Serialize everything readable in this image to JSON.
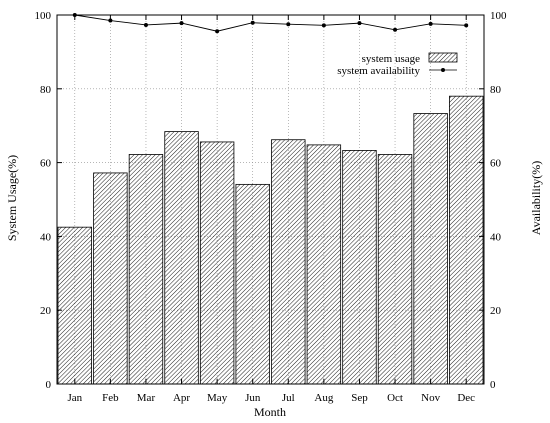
{
  "chart_data": {
    "type": "bar",
    "categories": [
      "Jan",
      "Feb",
      "Mar",
      "Apr",
      "May",
      "Jun",
      "Jul",
      "Aug",
      "Sep",
      "Oct",
      "Nov",
      "Dec"
    ],
    "series": [
      {
        "name": "system usage",
        "type": "bar",
        "axis": "left",
        "fill_pattern": "diagonal-hatch",
        "values": [
          42.5,
          57.2,
          62.2,
          68.4,
          65.6,
          54.1,
          66.2,
          64.8,
          63.3,
          62.2,
          73.3,
          78.0
        ]
      },
      {
        "name": "system availability",
        "type": "line",
        "axis": "right",
        "marker": "dot",
        "values": [
          100.0,
          98.5,
          97.3,
          97.8,
          95.6,
          97.9,
          97.5,
          97.2,
          97.8,
          96.0,
          97.6,
          97.2
        ]
      }
    ],
    "xlabel": "Month",
    "ylabel": "System Usage(%)",
    "y2label": "Availability(%)",
    "ylim": [
      0,
      100
    ],
    "y2lim": [
      0,
      100
    ],
    "yticks": [
      0,
      20,
      40,
      60,
      80,
      100
    ],
    "grid": true,
    "legend_position": "top-right",
    "colors": {
      "bar_edge": "#000000",
      "bar_hatch": "#000000",
      "line": "#000000",
      "grid": "#8c8c8c"
    }
  }
}
